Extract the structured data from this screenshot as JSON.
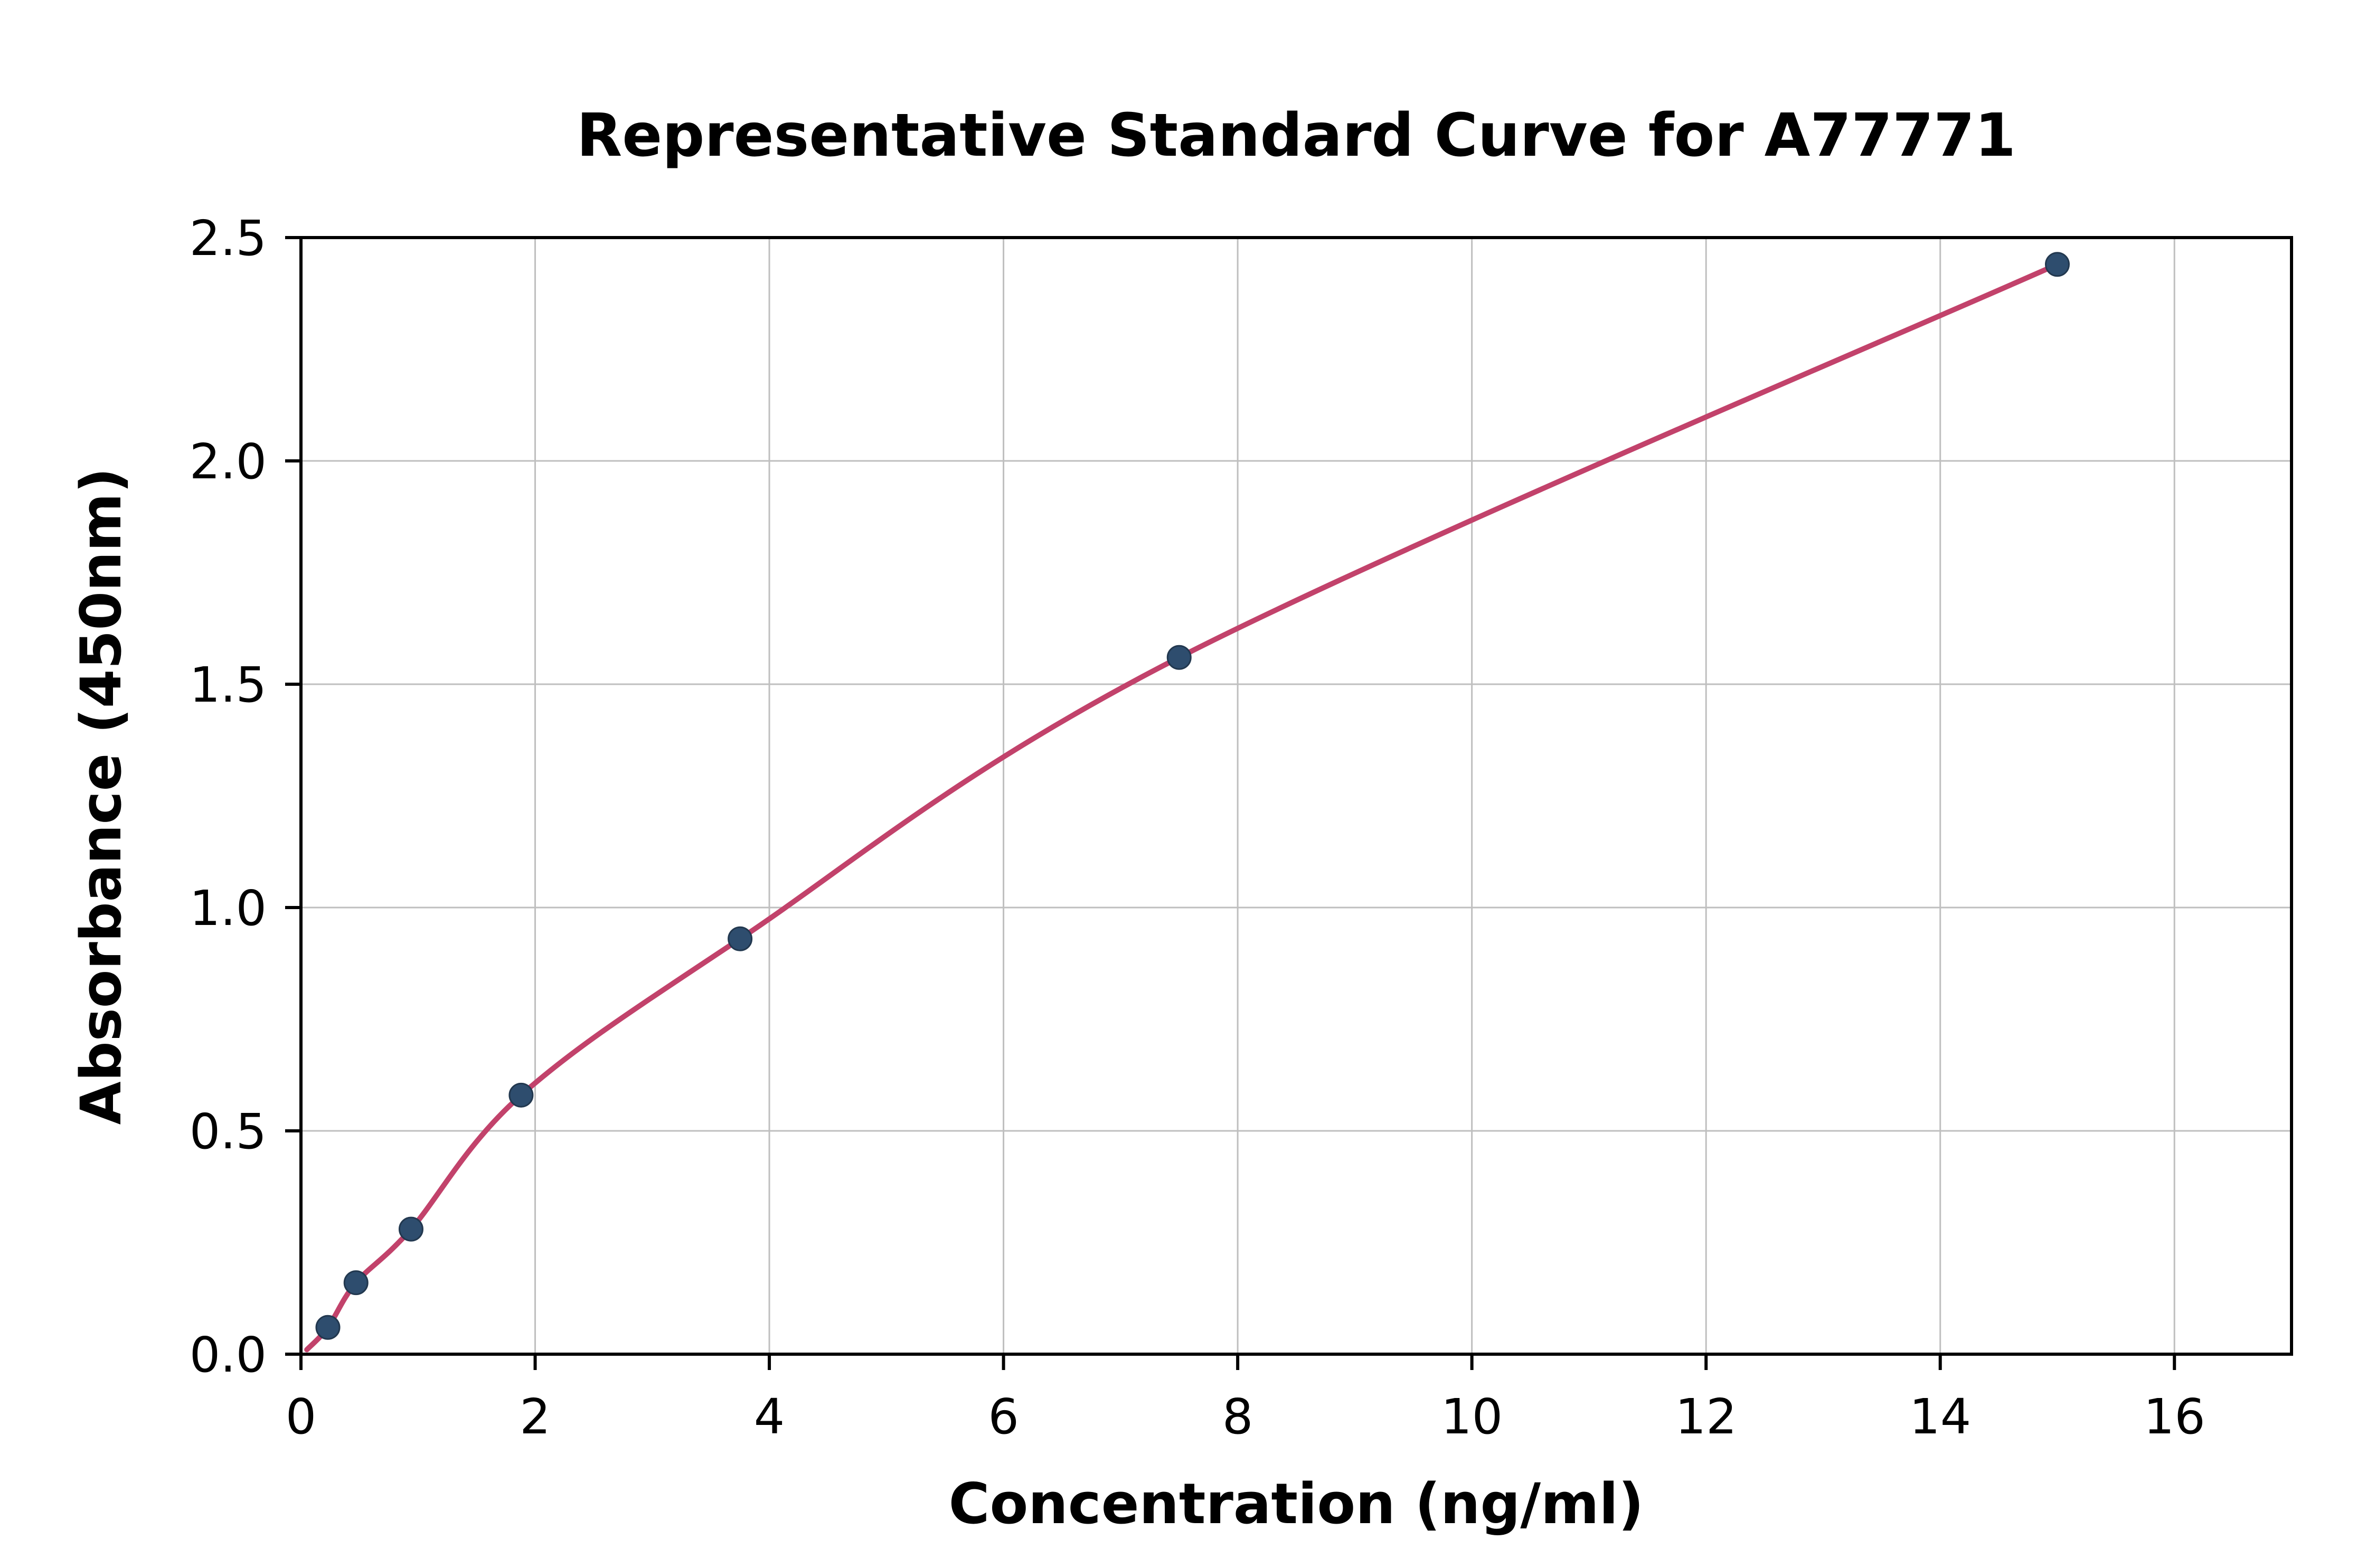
{
  "figure": {
    "background": "#ffffff"
  },
  "chart_data": {
    "type": "scatter",
    "title": "Representative Standard Curve for A77771",
    "xlabel": "Concentration (ng/ml)",
    "ylabel": "Absorbance (450nm)",
    "xlim": [
      0,
      17
    ],
    "ylim": [
      0,
      2.5
    ],
    "x_ticks": [
      0,
      2,
      4,
      6,
      8,
      10,
      12,
      14,
      16
    ],
    "x_tick_labels": [
      "0",
      "2",
      "4",
      "6",
      "8",
      "10",
      "12",
      "14",
      "16"
    ],
    "y_ticks": [
      0,
      0.5,
      1.0,
      1.5,
      2.0,
      2.5
    ],
    "y_tick_labels": [
      "0.0",
      "0.5",
      "1.0",
      "1.5",
      "2.0",
      "2.5"
    ],
    "grid": true,
    "legend": "none",
    "points": [
      {
        "x": 0.23,
        "y": 0.06
      },
      {
        "x": 0.47,
        "y": 0.16
      },
      {
        "x": 0.94,
        "y": 0.28
      },
      {
        "x": 1.88,
        "y": 0.58
      },
      {
        "x": 3.75,
        "y": 0.93
      },
      {
        "x": 7.5,
        "y": 1.56
      },
      {
        "x": 15.0,
        "y": 2.44
      }
    ],
    "curve_start": {
      "x": 0.05,
      "y": 0.01
    },
    "colors": {
      "curve": "#c2426b",
      "point_fill": "#2e4d6e",
      "point_edge": "#22384f",
      "grid": "#bfbfbf",
      "axis": "#000000",
      "text": "#000000"
    }
  }
}
